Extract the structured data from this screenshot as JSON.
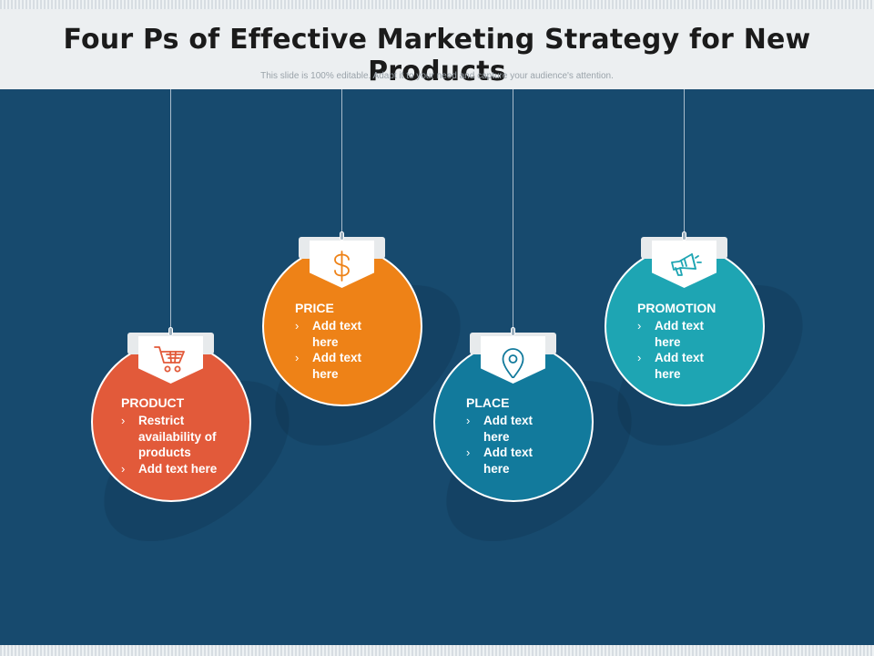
{
  "slide": {
    "title": "Four Ps of Effective Marketing Strategy for New Products",
    "subtitle": "This slide is 100% editable. Adapt it to your need and capture your audience's attention."
  },
  "bullet_glyph": "›",
  "cards": [
    {
      "id": "product",
      "title": "PRODUCT",
      "items": [
        "Restrict availability of products",
        "Add text here"
      ],
      "color": "#e25a3a",
      "icon": "shopping-cart-icon"
    },
    {
      "id": "price",
      "title": "PRICE",
      "items": [
        "Add text here",
        "Add text here"
      ],
      "color": "#ee8217",
      "icon": "dollar-icon"
    },
    {
      "id": "place",
      "title": "PLACE",
      "items": [
        "Add text here",
        "Add text here"
      ],
      "color": "#127a9c",
      "icon": "location-pin-icon"
    },
    {
      "id": "promotion",
      "title": "PROMOTION",
      "items": [
        "Add text here",
        "Add text here"
      ],
      "color": "#1ea5b3",
      "icon": "megaphone-icon"
    }
  ],
  "colors": {
    "background": "#174a6e",
    "header": "#eceff1",
    "title_text": "#1b1b1b",
    "subtitle_text": "#9aa3aa"
  }
}
